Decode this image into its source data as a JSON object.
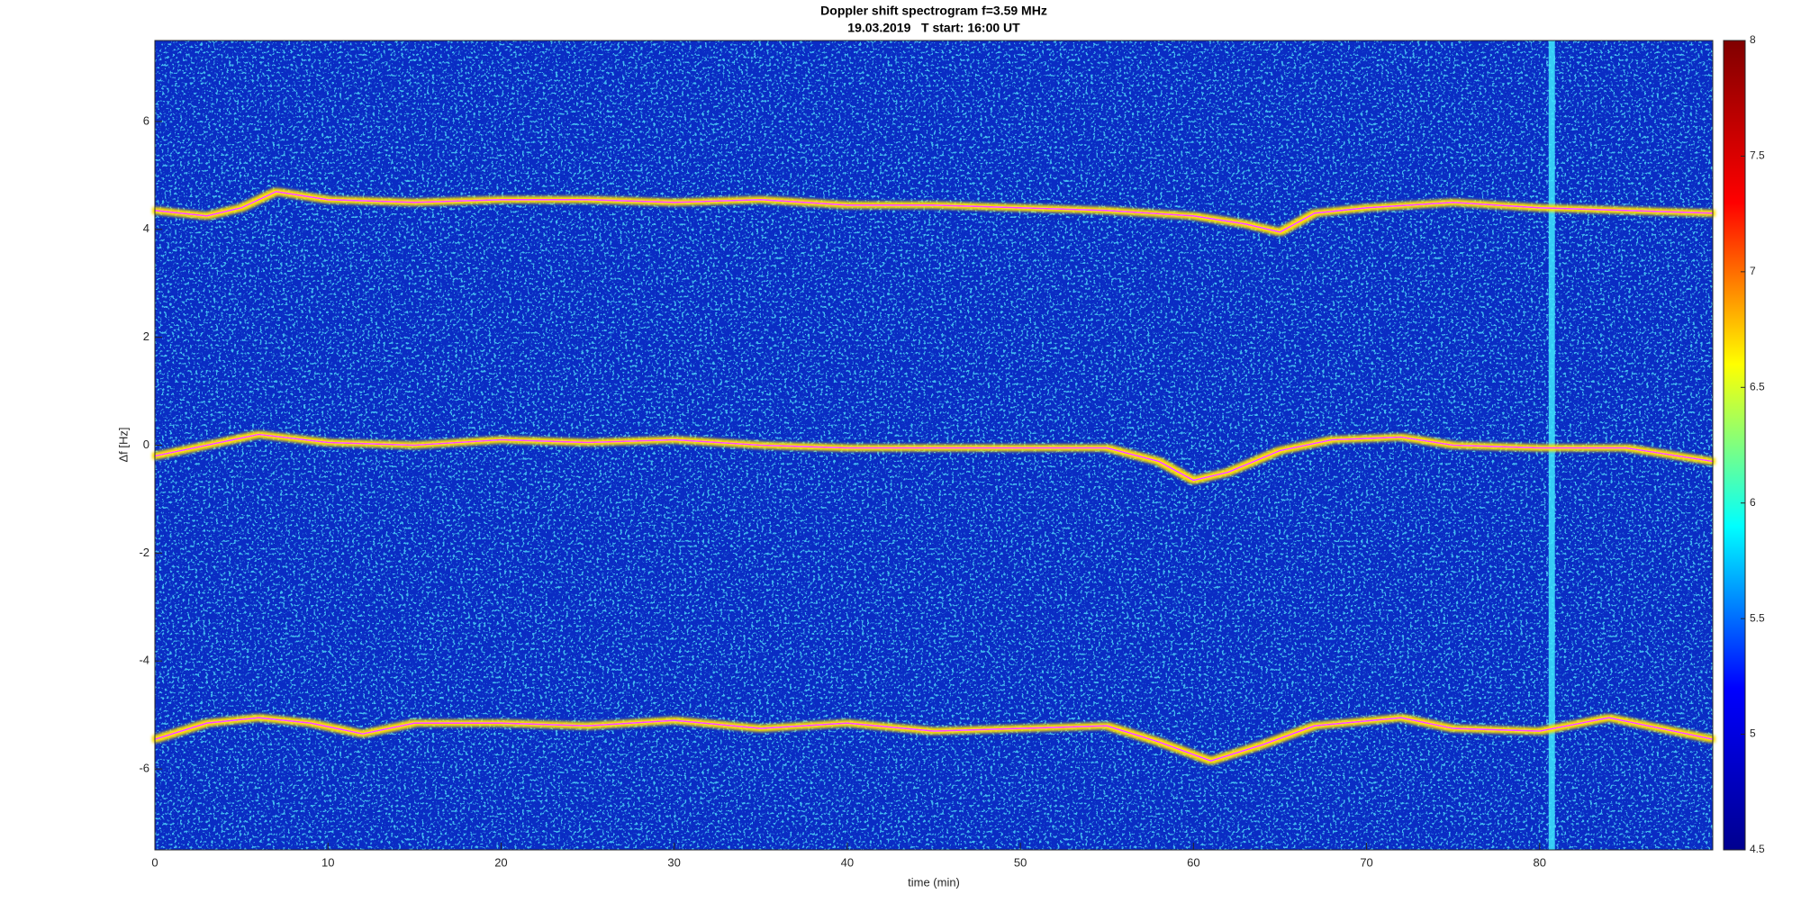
{
  "chart_data": {
    "type": "spectrogram",
    "title": "Doppler shift spectrogram f=3.59 MHz",
    "subtitle": "19.03.2019   T start: 16:00 UT",
    "xlabel": "time (min)",
    "ylabel": "Δf [Hz]",
    "xlim": [
      0,
      90
    ],
    "xticks": [
      0,
      10,
      20,
      30,
      40,
      50,
      60,
      70,
      80
    ],
    "ylim": [
      -7.5,
      7.5
    ],
    "yticks": [
      -6,
      -4,
      -2,
      0,
      2,
      4,
      6
    ],
    "clim": [
      4.5,
      8
    ],
    "cticks": [
      4.5,
      5,
      5.5,
      6,
      6.5,
      7,
      7.5,
      8
    ],
    "colormap": [
      "#00008f",
      "#0000ff",
      "#00ffff",
      "#ffff00",
      "#ff0000",
      "#800000"
    ],
    "background": "#0a2cc4",
    "vertical_lines": [
      80.7
    ],
    "vertical_line_color": "#3fe8ff",
    "series": [
      {
        "color": "#ff40ff",
        "x": [
          0,
          3,
          5,
          7,
          10,
          15,
          20,
          25,
          30,
          35,
          40,
          45,
          50,
          55,
          60,
          63,
          65,
          67,
          70,
          75,
          80,
          85,
          90
        ],
        "values": [
          4.35,
          4.25,
          4.4,
          4.7,
          4.55,
          4.5,
          4.55,
          4.55,
          4.5,
          4.55,
          4.45,
          4.45,
          4.4,
          4.35,
          4.25,
          4.1,
          3.95,
          4.3,
          4.4,
          4.5,
          4.4,
          4.35,
          4.3
        ]
      },
      {
        "color": "#ff40ff",
        "x": [
          0,
          3,
          6,
          10,
          15,
          20,
          25,
          30,
          35,
          40,
          45,
          50,
          55,
          58,
          60,
          62,
          65,
          68,
          72,
          75,
          80,
          85,
          90
        ],
        "values": [
          -0.2,
          0,
          0.2,
          0.05,
          0,
          0.1,
          0.05,
          0.1,
          0,
          -0.05,
          -0.05,
          -0.05,
          -0.05,
          -0.3,
          -0.65,
          -0.5,
          -0.1,
          0.1,
          0.15,
          0,
          -0.05,
          -0.05,
          -0.3
        ]
      },
      {
        "color": "#ff40ff",
        "x": [
          0,
          3,
          6,
          9,
          12,
          15,
          20,
          25,
          30,
          35,
          40,
          45,
          50,
          55,
          58,
          61,
          64,
          67,
          72,
          75,
          80,
          84,
          87,
          90
        ],
        "values": [
          -5.45,
          -5.15,
          -5.05,
          -5.15,
          -5.35,
          -5.15,
          -5.15,
          -5.2,
          -5.1,
          -5.25,
          -5.15,
          -5.3,
          -5.25,
          -5.2,
          -5.5,
          -5.85,
          -5.55,
          -5.2,
          -5.05,
          -5.25,
          -5.3,
          -5.05,
          -5.25,
          -5.45
        ]
      }
    ]
  }
}
